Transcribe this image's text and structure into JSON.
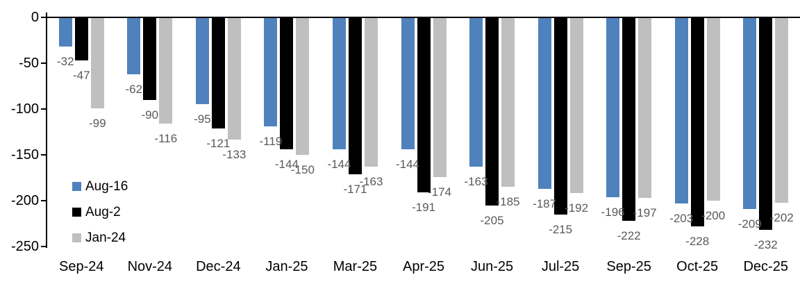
{
  "chart_data": {
    "type": "bar",
    "title": "",
    "xlabel": "",
    "ylabel": "",
    "categories": [
      "Sep-24",
      "Nov-24",
      "Dec-24",
      "Jan-25",
      "Mar-25",
      "Apr-25",
      "Jun-25",
      "Jul-25",
      "Sep-25",
      "Oct-25",
      "Dec-25"
    ],
    "series": [
      {
        "name": "Aug-16",
        "color": "#4F81BD",
        "values": [
          -32,
          -62,
          -95,
          -119,
          -144,
          -144,
          -163,
          -187,
          -196,
          -203,
          -209
        ]
      },
      {
        "name": "Aug-2",
        "color": "#000000",
        "values": [
          -47,
          -90,
          -121,
          -144,
          -171,
          -191,
          -205,
          -215,
          -222,
          -228,
          -232
        ]
      },
      {
        "name": "Jan-24",
        "color": "#BFBFBF",
        "values": [
          -99,
          -116,
          -133,
          -150,
          -163,
          -174,
          -185,
          -192,
          -197,
          -200,
          -202
        ]
      }
    ],
    "y_axis": {
      "ticks": [
        0,
        -50,
        -100,
        -150,
        -200,
        -250
      ],
      "ylim": [
        -250,
        0
      ]
    },
    "grid": false,
    "data_labels_visible": true,
    "data_label_color": "#595959",
    "axis_color": "#000000",
    "legend_position": "inside-bottom-left"
  }
}
